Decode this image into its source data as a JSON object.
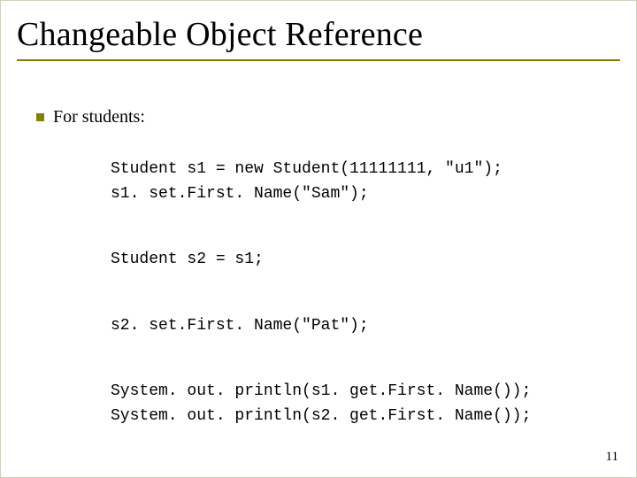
{
  "colors": {
    "accent": "#808000",
    "text": "#000000",
    "background": "#ffffff",
    "border": "#d0d0c0"
  },
  "typography": {
    "title_family": "Times New Roman",
    "title_size_pt": 38,
    "title_weight": 400,
    "body_family": "Times New Roman",
    "body_size_pt": 20,
    "code_family": "Courier New",
    "code_size_pt": 18
  },
  "slide": {
    "title": "Changeable Object Reference",
    "bullet_label": "For students:",
    "code_lines": [
      "Student s1 = new Student(11111111, \"u1\");",
      "s1. set.First. Name(\"Sam\");",
      "",
      "Student s2 = s1;",
      "",
      "s2. set.First. Name(\"Pat\");",
      "",
      "System. out. println(s1. get.First. Name());",
      "System. out. println(s2. get.First. Name());"
    ],
    "page_number": "11"
  }
}
